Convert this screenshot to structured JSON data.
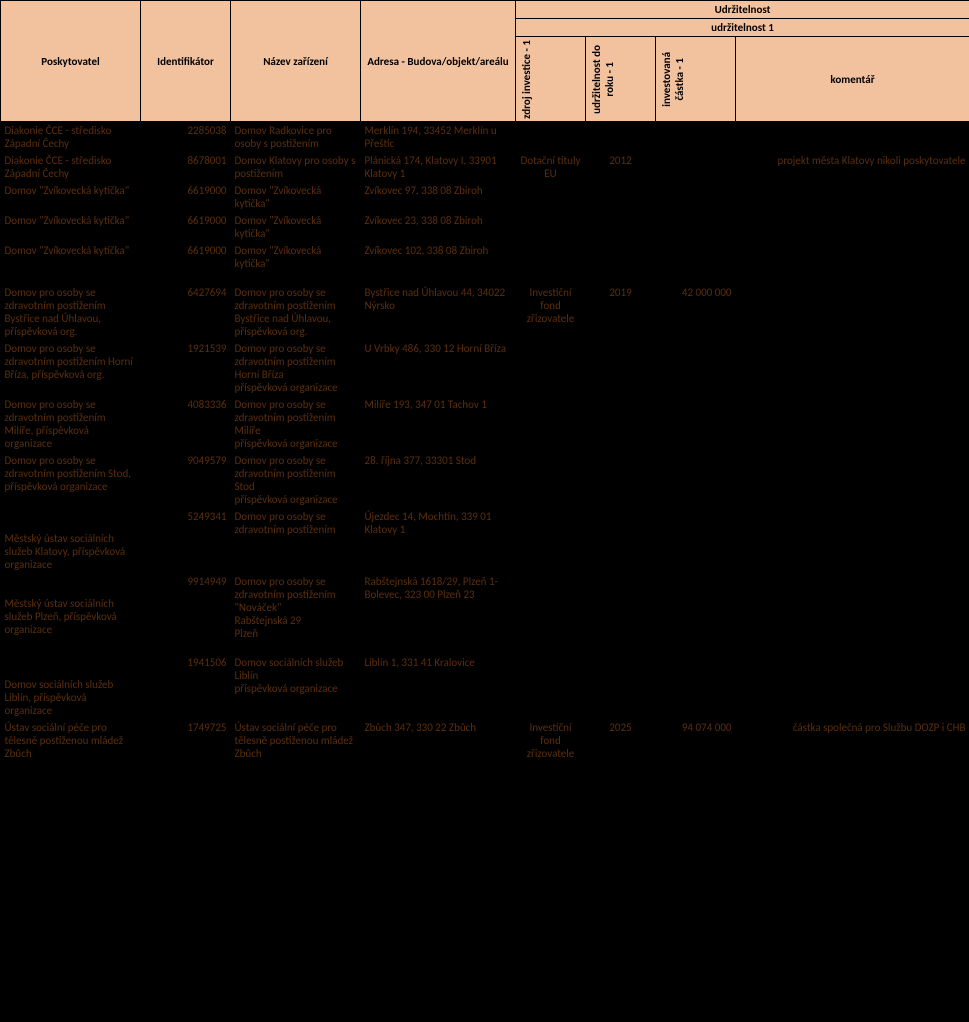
{
  "header": {
    "top": "Udržitelnost",
    "sub": "udržitelnost 1",
    "cols": {
      "provider": "Poskytovatel",
      "ident": "Identifikátor",
      "name": "Název zařízení",
      "address": "Adresa - Budova/objekt/areálu",
      "source": "zdroj investice - 1",
      "year": "udržitelnost do roku - 1",
      "amount": "investovaná částka - 1",
      "comment": "komentář"
    }
  },
  "rows": [
    {
      "provider": "Diakonie ČCE - středisko Západní Čechy",
      "ident": "2285038",
      "name": "Domov Radkovice pro osoby s postižením",
      "address": "Merklín 194, 33452 Merklín u Přeštic",
      "source": "",
      "year": "",
      "amount": "",
      "comment": ""
    },
    {
      "provider": "Diakonie ČCE - středisko Západní Čechy",
      "ident": "8678001",
      "name": "Domov Klatovy pro osoby s postižením",
      "address": "Plánická 174, Klatovy I, 33901 Klatovy 1",
      "source": "Dotační tituly EU",
      "year": "2012",
      "amount": "",
      "comment": "projekt města Klatovy nikoli poskytovatele"
    },
    {
      "provider": "Domov \"Zvíkovecká kytička\"",
      "ident": "6619000",
      "name": "Domov \"Zvíkovecká kytička\"",
      "address": "Zvíkovec 97, 338 08 Zbiroh",
      "source": "",
      "year": "",
      "amount": "",
      "comment": ""
    },
    {
      "provider": "Domov \"Zvíkovecká kytička\"",
      "ident": "6619000",
      "name": "Domov \"Zvíkovecká kytička\"",
      "address": "Zvíkovec 23, 338 08 Zbiroh",
      "source": "",
      "year": "",
      "amount": "",
      "comment": ""
    },
    {
      "provider": "Domov \"Zvíkovecká kytička\"",
      "ident": "6619000",
      "name": "Domov \"Zvíkovecká kytička\"",
      "address": "Zvíkovec 102, 338 08 Zbiroh",
      "source": "",
      "year": "",
      "amount": "",
      "comment": ""
    },
    {
      "provider": "Domov pro osoby se zdravotním postižením Bystřice nad Úhlavou, příspěvková org.",
      "ident": "6427694",
      "name": "Domov pro osoby se zdravotním postižením Bystřice nad Úhlavou, příspěvková org.",
      "address": "Bystřice nad Úhlavou 44, 34022 Nýrsko",
      "source": "Investiční fond zřizovatele",
      "year": "2019",
      "amount": "42 000 000",
      "comment": ""
    },
    {
      "provider": "Domov pro osoby se zdravotním postižením Horní Bříza, příspěvková org.",
      "ident": "1921539",
      "name": "Domov pro osoby se zdravotním postižením Horní Bříza\npříspěvková organizace",
      "address": "U Vrbky 486, 330 12 Horní Bříza",
      "source": "",
      "year": "",
      "amount": "",
      "comment": ""
    },
    {
      "provider": "Domov pro osoby se zdravotním postižením Milíře, příspěvková organizace",
      "ident": "4083336",
      "name": "Domov pro osoby se zdravotním postižením Milíře\npříspěvková organizace",
      "address": "Milíře 193, 347 01 Tachov 1",
      "source": "",
      "year": "",
      "amount": "",
      "comment": ""
    },
    {
      "provider": "Domov pro osoby se zdravotním postižením Stod, příspěvková organizace",
      "ident": "9049579",
      "name": "Domov pro osoby se zdravotním postižením Stod\npříspěvková organizace",
      "address": "28. října 377, 33301 Stod",
      "source": "",
      "year": "",
      "amount": "",
      "comment": ""
    },
    {
      "provider": "Městský ústav sociálních služeb Klatovy, příspěvková organizace",
      "ident": "5249341",
      "name": "Domov pro osoby se zdravotním postižením",
      "address": "Újezdec 14, Mochtín, 339 01 Klatovy 1",
      "source": "",
      "year": "",
      "amount": "",
      "comment": ""
    },
    {
      "provider": "Městský ústav sociálních služeb Plzeň, příspěvková organizace",
      "ident": "9914949",
      "name": "Domov pro osoby se zdravotním postižením \"Nováček\"\nRabštejnská 29\nPlzeň",
      "address": "Rabštejnská 1618/29, Plzeň 1-Bolevec, 323 00 Plzeň 23",
      "source": "",
      "year": "",
      "amount": "",
      "comment": ""
    },
    {
      "provider": "Domov sociálních služeb Liblín, příspěvková organizace",
      "ident": "1941506",
      "name": "Domov sociálních služeb Liblín\npříspěvková organizace",
      "address": "Liblín 1, 331 41 Kralovice",
      "source": "",
      "year": "",
      "amount": "",
      "comment": ""
    },
    {
      "provider": "Ústav sociální péče pro tělesně postiženou mládež Zbůch",
      "ident": "1749725",
      "name": "Ústav sociální péče pro tělesně postiženou mládež Zbůch",
      "address": "Zbůch 347, 330 22 Zbůch",
      "source": "Investiční fond zřizovatele",
      "year": "2025",
      "amount": "94 074 000",
      "comment": "částka společná pro Službu DOZP i CHB"
    }
  ]
}
